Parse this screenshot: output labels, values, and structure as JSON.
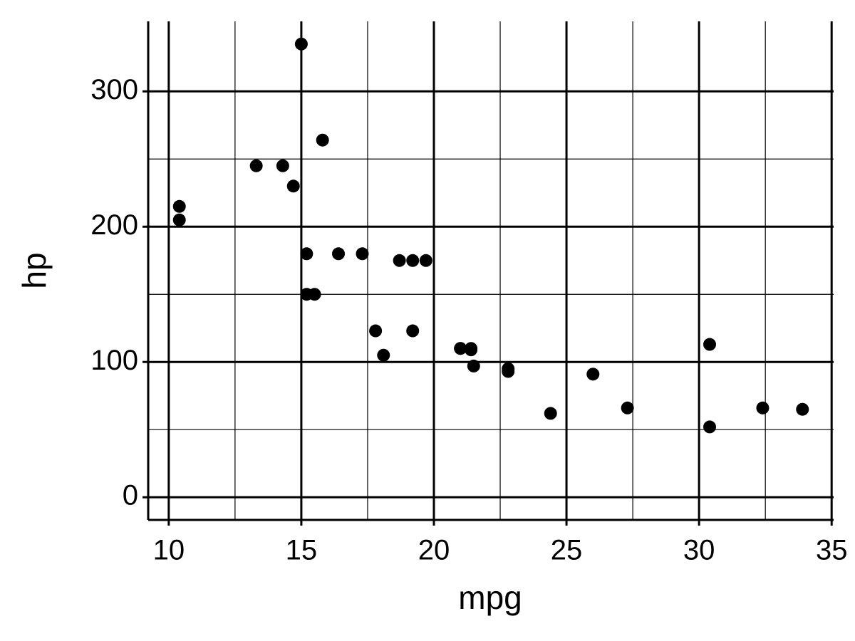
{
  "chart_data": {
    "type": "scatter",
    "x_label": "mpg",
    "y_label": "hp",
    "x": [
      21.0,
      21.0,
      22.8,
      21.4,
      18.7,
      18.1,
      14.3,
      24.4,
      22.8,
      19.2,
      17.8,
      16.4,
      17.3,
      15.2,
      10.4,
      10.4,
      14.7,
      32.4,
      30.4,
      33.9,
      21.5,
      15.5,
      15.2,
      13.3,
      19.2,
      27.3,
      26.0,
      30.4,
      15.8,
      19.7,
      15.0,
      21.4
    ],
    "values": [
      110,
      110,
      93,
      110,
      175,
      105,
      245,
      62,
      95,
      123,
      123,
      180,
      180,
      180,
      205,
      215,
      230,
      66,
      52,
      65,
      97,
      150,
      150,
      245,
      175,
      66,
      91,
      113,
      264,
      175,
      335,
      109
    ],
    "color": "#000000",
    "xlim": [
      9.225,
      35.075
    ],
    "xticks": [
      10,
      15,
      20,
      25,
      30,
      35
    ],
    "xminorticks": [
      12.5,
      17.5,
      22.5,
      27.5,
      32.5
    ],
    "ylim": [
      -16.75,
      351.75
    ],
    "yticks": [
      0,
      100,
      200,
      300
    ],
    "yminorticks": [
      50,
      150,
      250
    ],
    "grid": true
  }
}
